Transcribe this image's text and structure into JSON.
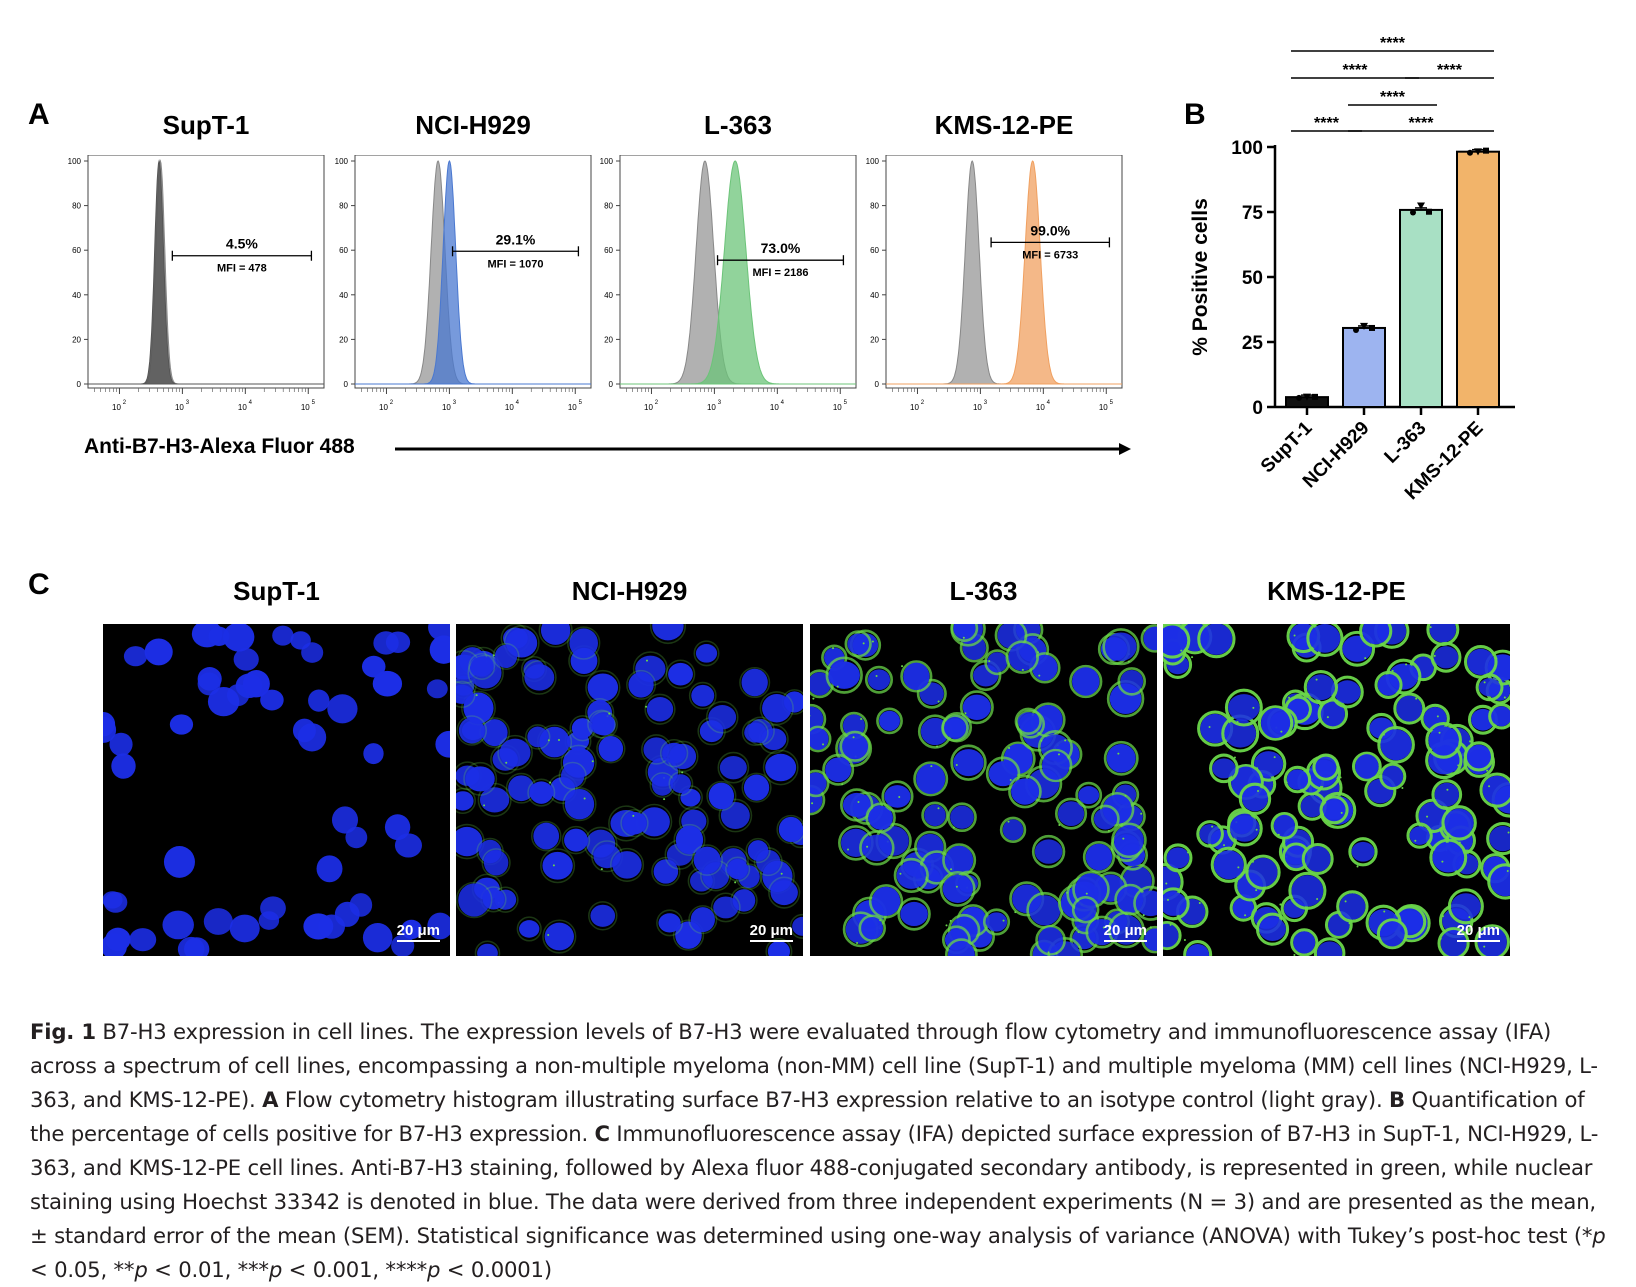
{
  "panels": {
    "A": "A",
    "B": "B",
    "C": "C"
  },
  "flow": {
    "cell_lines": [
      {
        "name": "SupT-1",
        "percent": "4.5%",
        "mfi": "MFI = 478",
        "color": "#555555"
      },
      {
        "name": "NCI-H929",
        "percent": "29.1%",
        "mfi": "MFI = 1070",
        "color": "#4a78d0"
      },
      {
        "name": "L-363",
        "percent": "73.0%",
        "mfi": "MFI = 2186",
        "color": "#6cc479"
      },
      {
        "name": "KMS-12-PE",
        "percent": "99.0%",
        "mfi": "MFI = 6733",
        "color": "#f0a060"
      }
    ],
    "isotype_color": "#a8a8a8",
    "y_ticks": [
      "0",
      "20",
      "40",
      "60",
      "80",
      "100"
    ],
    "x_ticks": [
      "10",
      "10",
      "10",
      "10"
    ],
    "x_tick_exponents": [
      "2",
      "3",
      "4",
      "5"
    ],
    "axis_label": "Anti-B7-H3-Alexa Fluor 488"
  },
  "chart_data": {
    "type": "bar",
    "categories": [
      "SupT-1",
      "NCI-H929",
      "L-363",
      "KMS-12-PE"
    ],
    "values": [
      3.8,
      30.4,
      75.8,
      98.2
    ],
    "points": [
      [
        3.5,
        4.0,
        3.9
      ],
      [
        29.6,
        31.2,
        30.4
      ],
      [
        74.8,
        77.5,
        75.1
      ],
      [
        97.8,
        98.3,
        98.6
      ]
    ],
    "colors": [
      "#111111",
      "#9db4f0",
      "#a8e0c4",
      "#f2b46a"
    ],
    "ylabel": "% Positive cells",
    "ylim": [
      0,
      100
    ],
    "yticks": [
      "0",
      "25",
      "50",
      "75",
      "100"
    ],
    "significance": [
      {
        "label": "****",
        "from": 0,
        "to": 3
      },
      {
        "label": "****",
        "from": 0,
        "to": 2
      },
      {
        "label": "****",
        "from": 2,
        "to": 3
      },
      {
        "label": "****",
        "from": 1,
        "to": 2
      },
      {
        "label": "****",
        "from": 0,
        "to": 1
      },
      {
        "label": "****",
        "from": 1,
        "to": 3
      }
    ]
  },
  "ifa": {
    "cell_lines": [
      "SupT-1",
      "NCI-H929",
      "L-363",
      "KMS-12-PE"
    ],
    "green_level": [
      0.01,
      0.25,
      0.75,
      0.95
    ],
    "scale_bar": "20 μm",
    "nucleus_color": "#1c2ee6",
    "membrane_color": "#6ad64a"
  },
  "caption": {
    "fig_label": "Fig. 1",
    "text_1": "  B7-H3 expression in cell lines. The expression levels of B7-H3 were evaluated through flow cytometry and immunofluorescence assay (IFA) across a spectrum of cell lines, encompassing a non-multiple myeloma (non-MM) cell line (SupT-1) and multiple myeloma (MM) cell lines (NCI-H929, L-363, and KMS-12-PE). ",
    "bold_A": "A",
    "text_2": " Flow cytometry histogram illustrating surface B7-H3 expression relative to an isotype control (light gray). ",
    "bold_B": "B",
    "text_3": " Quantification of the percentage of cells positive for B7-H3 expression. ",
    "bold_C": "C",
    "text_4": " Immunofluorescence assay (IFA) depicted surface expression of B7-H3 in SupT-1, NCI-H929, L-363, and KMS-12-PE cell lines. Anti-B7-H3 staining, followed by Alexa fluor 488-conjugated secondary antibody, is represented in green, while nuclear staining using Hoechst 33342 is denoted in blue. The data were derived from three independent experiments (N = 3) and are presented as the mean, ± standard error of the mean (SEM). Statistical significance was determined using one-way analysis of variance (ANOVA) with Tukey’s post-hoc test (*",
    "p1": "p",
    "text_5": " < 0.05, **",
    "p2": "p",
    "text_6": " < 0.01, ***",
    "p3": "p",
    "text_7": " < 0.001, ****",
    "p4": "p",
    "text_8": " < 0.0001)"
  }
}
